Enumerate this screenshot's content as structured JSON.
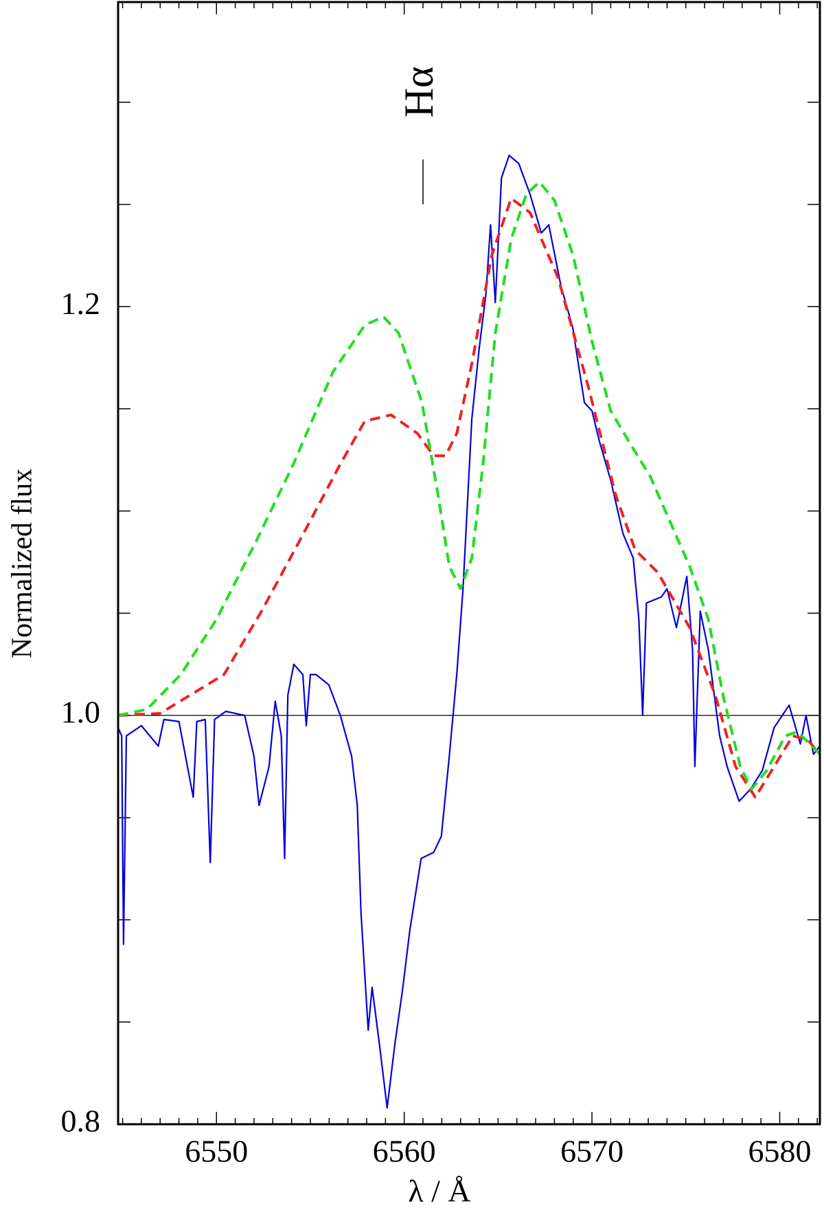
{
  "chart_data": {
    "type": "line",
    "xlabel": "λ / Å",
    "ylabel": "Normalized flux",
    "xlim": [
      6544.76,
      6582.14
    ],
    "ylim": [
      0.8,
      1.349
    ],
    "xticks": [
      6550,
      6560,
      6570,
      6580
    ],
    "xminor": [
      6545,
      6546,
      6547,
      6548,
      6549,
      6551,
      6552,
      6553,
      6554,
      6555,
      6556,
      6557,
      6558,
      6559,
      6561,
      6562,
      6563,
      6564,
      6565,
      6566,
      6567,
      6568,
      6569,
      6571,
      6572,
      6573,
      6574,
      6575,
      6576,
      6577,
      6578,
      6579,
      6581,
      6582
    ],
    "yticks": [
      {
        "value": 0.8,
        "label": "0.8"
      },
      {
        "value": 1.0,
        "label": "1.0"
      },
      {
        "value": 1.2,
        "label": "1.2"
      }
    ],
    "yminor": [
      0.85,
      0.9,
      0.95,
      1.05,
      1.1,
      1.15,
      1.25,
      1.3
    ],
    "reference_line": 1.0,
    "annotation": {
      "text": "Hα",
      "x": 6561.0,
      "y": 1.305,
      "marker_ylim": [
        1.25,
        1.272
      ]
    },
    "series": [
      {
        "color": "#0000dd",
        "dashed": false,
        "x": [
          6544.76,
          6544.95,
          6545.05,
          6545.2,
          6546.0,
          6546.9,
          6547.2,
          6548.0,
          6548.76,
          6548.95,
          6549.4,
          6549.67,
          6549.9,
          6550.5,
          6551.5,
          6552.0,
          6552.27,
          6552.8,
          6553.13,
          6553.45,
          6553.63,
          6553.8,
          6554.12,
          6554.6,
          6554.78,
          6555.0,
          6555.3,
          6555.98,
          6556.6,
          6557.2,
          6557.5,
          6557.7,
          6558.08,
          6558.29,
          6558.68,
          6559.09,
          6559.5,
          6559.9,
          6560.3,
          6560.9,
          6561.57,
          6561.98,
          6562.39,
          6562.8,
          6563.13,
          6563.6,
          6564.0,
          6564.35,
          6564.6,
          6564.85,
          6565.18,
          6565.59,
          6566.1,
          6566.7,
          6567.3,
          6567.7,
          6568.35,
          6568.97,
          6569.6,
          6570.0,
          6570.4,
          6571.0,
          6571.65,
          6572.2,
          6572.5,
          6572.7,
          6572.9,
          6573.7,
          6574.0,
          6574.5,
          6575.05,
          6575.36,
          6575.48,
          6575.77,
          6576.2,
          6576.8,
          6577.2,
          6577.84,
          6578.45,
          6579.07,
          6579.7,
          6580.5,
          6581.1,
          6581.4,
          6581.8,
          6582.14
        ],
        "values": [
          0.994,
          0.99,
          0.888,
          0.99,
          0.995,
          0.985,
          0.998,
          0.997,
          0.96,
          0.997,
          0.998,
          0.928,
          0.998,
          1.002,
          1.0,
          0.98,
          0.956,
          0.975,
          1.007,
          0.99,
          0.93,
          1.01,
          1.025,
          1.02,
          0.995,
          1.02,
          1.02,
          1.015,
          1.0,
          0.98,
          0.956,
          0.903,
          0.846,
          0.867,
          0.839,
          0.808,
          0.839,
          0.865,
          0.895,
          0.93,
          0.933,
          0.941,
          0.979,
          1.02,
          1.062,
          1.145,
          1.18,
          1.206,
          1.24,
          1.202,
          1.263,
          1.274,
          1.27,
          1.255,
          1.236,
          1.24,
          1.21,
          1.19,
          1.153,
          1.149,
          1.134,
          1.115,
          1.089,
          1.077,
          1.047,
          1.0,
          1.055,
          1.058,
          1.062,
          1.043,
          1.068,
          1.032,
          0.975,
          1.051,
          1.032,
          0.99,
          0.975,
          0.958,
          0.964,
          0.973,
          0.994,
          1.005,
          0.986,
          1.0,
          0.981,
          0.985
        ]
      },
      {
        "color": "#ee2222",
        "dashed": true,
        "x": [
          6544.76,
          6547.0,
          6550.4,
          6552.4,
          6554.4,
          6556.6,
          6557.9,
          6559.3,
          6560.7,
          6561.57,
          6562.2,
          6562.8,
          6563.6,
          6564.66,
          6565.7,
          6566.7,
          6568.2,
          6569.8,
          6571.26,
          6572.3,
          6573.5,
          6575.2,
          6576.6,
          6577.65,
          6578.7,
          6579.7,
          6580.7,
          6581.5,
          6582.14
        ],
        "values": [
          1.0,
          1.001,
          1.02,
          1.051,
          1.085,
          1.123,
          1.144,
          1.147,
          1.138,
          1.127,
          1.127,
          1.138,
          1.172,
          1.225,
          1.253,
          1.246,
          1.214,
          1.161,
          1.108,
          1.081,
          1.07,
          1.043,
          1.009,
          0.975,
          0.96,
          0.975,
          0.99,
          0.988,
          0.981
        ]
      },
      {
        "color": "#22dd22",
        "dashed": true,
        "x": [
          6544.76,
          6546.3,
          6548.1,
          6550.0,
          6552.1,
          6554.1,
          6556.2,
          6557.9,
          6558.9,
          6559.7,
          6560.95,
          6561.8,
          6562.4,
          6563.0,
          6563.6,
          6564.2,
          6564.85,
          6565.7,
          6566.5,
          6567.2,
          6568.0,
          6569.0,
          6570.0,
          6571.0,
          6572.1,
          6573.1,
          6574.1,
          6575.2,
          6576.2,
          6577.0,
          6577.9,
          6578.5,
          6579.3,
          6580.3,
          6580.95,
          6581.5,
          6582.14
        ],
        "values": [
          1.0,
          1.003,
          1.02,
          1.047,
          1.085,
          1.123,
          1.168,
          1.191,
          1.195,
          1.187,
          1.153,
          1.108,
          1.073,
          1.062,
          1.077,
          1.123,
          1.187,
          1.233,
          1.255,
          1.261,
          1.252,
          1.225,
          1.183,
          1.149,
          1.132,
          1.117,
          1.096,
          1.073,
          1.047,
          1.009,
          0.975,
          0.964,
          0.973,
          0.99,
          0.992,
          0.987,
          0.981
        ]
      }
    ]
  }
}
